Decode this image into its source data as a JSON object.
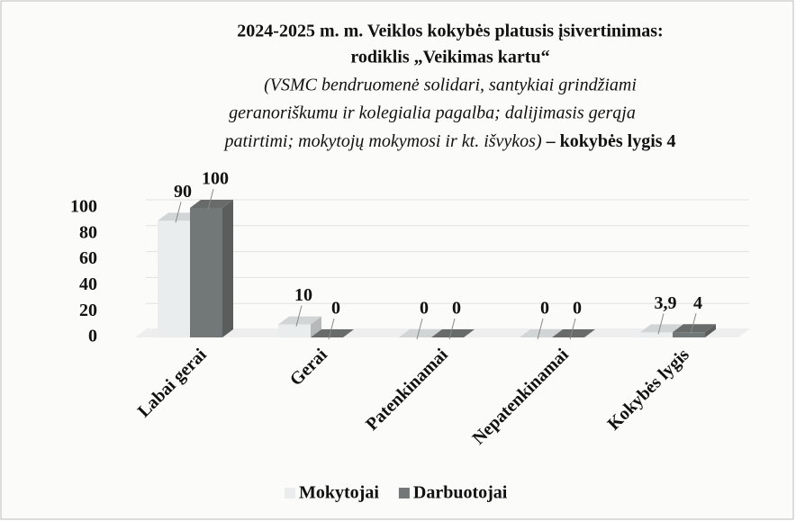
{
  "chart_data": {
    "type": "bar3d",
    "title": [
      "2024-2025 m. m. Veiklos kokybės platusis įsivertinimas:",
      "rodiklis „Veikimas kartu“"
    ],
    "subtitle": [
      "(VSMC bendruomenė solidari, santykiai grindžiami",
      "geranoriškumu ir kolegialia pagalba; dalijimasis gerąja",
      "patirtimi; mokytojų mokymosi ir kt. išvykos)"
    ],
    "subtitle_emphasis": "– kokybės lygis 4",
    "categories": [
      "Labai gerai",
      "Gerai",
      "Patenkinamai",
      "Nepatenkinamai",
      "Kokybės lygis"
    ],
    "series": [
      {
        "name": "Mokytojai",
        "color": "#e9eded",
        "values": [
          90,
          10,
          0,
          0,
          3.9
        ],
        "value_labels": [
          "90",
          "10",
          "0",
          "0",
          "3,9"
        ]
      },
      {
        "name": "Darbuotojai",
        "color": "#727877",
        "values": [
          100,
          0,
          0,
          0,
          4
        ]
      }
    ],
    "ylim": [
      0,
      100
    ],
    "yticks": [
      0,
      20,
      40,
      60,
      80,
      100
    ],
    "grid": true,
    "legend": "bottom"
  }
}
